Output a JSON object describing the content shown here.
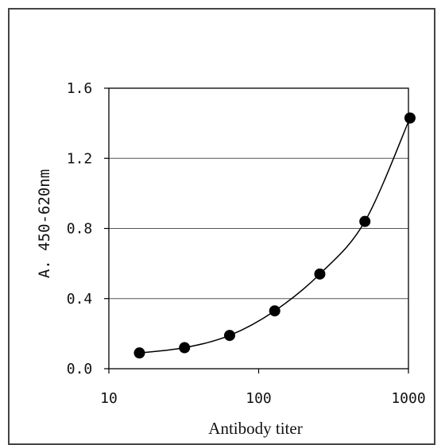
{
  "chart_data": {
    "type": "line",
    "title": "",
    "xlabel": "Antibody titer",
    "ylabel": "A. 450-620nm",
    "x_scale": "log",
    "xlim": [
      10,
      1000
    ],
    "ylim": [
      0.0,
      1.6
    ],
    "x_ticks": [
      "10",
      "100",
      "1000"
    ],
    "y_ticks": [
      "0.0",
      "0.4",
      "0.8",
      "1.2",
      "1.6"
    ],
    "grid": "horizontal",
    "legend": "none",
    "marker": "filled-circle",
    "series": [
      {
        "x": [
          16,
          32,
          64,
          128,
          256,
          512,
          1024
        ],
        "y": [
          0.09,
          0.12,
          0.19,
          0.33,
          0.54,
          0.84,
          1.43
        ]
      }
    ],
    "colors": {
      "line": "#000000",
      "marker": "#000000",
      "grid": "#555555"
    }
  }
}
